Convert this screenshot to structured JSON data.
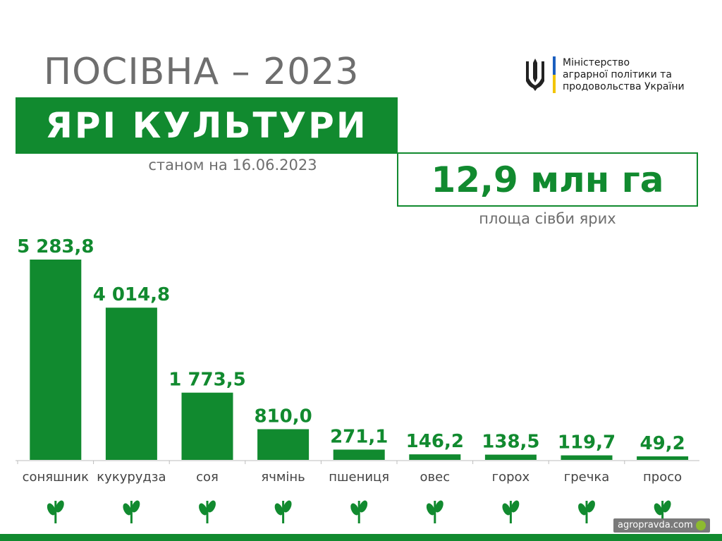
{
  "header": {
    "title": "ПОСІВНА – 2023",
    "banner": "ЯРІ КУЛЬТУРИ",
    "as_of": "станом на 16.06.2023"
  },
  "ministry": {
    "lines": [
      "Міністерство",
      "аграрної політики та",
      "продовольства України"
    ]
  },
  "total": {
    "value": "12,9 млн га",
    "caption": "площа сівби ярих"
  },
  "chart_data": {
    "type": "bar",
    "categories": [
      "соняшник",
      "кукурудза",
      "соя",
      "ячмінь",
      "пшениця",
      "овес",
      "горох",
      "гречка",
      "просо"
    ],
    "values": [
      5283.8,
      4014.8,
      1773.5,
      810.0,
      271.1,
      146.2,
      138.5,
      119.7,
      49.2
    ],
    "value_labels": [
      "5 283,8",
      "4 014,8",
      "1 773,5",
      "810,0",
      "271,1",
      "146,2",
      "138,5",
      "119,7",
      "49,2"
    ],
    "icons": [
      "sunflower-icon",
      "corn-icon",
      "soy-icon",
      "barley-icon",
      "wheat-icon",
      "oats-icon",
      "pea-icon",
      "buckwheat-icon",
      "millet-icon"
    ],
    "title": "",
    "xlabel": "",
    "ylabel": "",
    "ylim": [
      0,
      5283.8
    ],
    "grid": false,
    "legend": "none",
    "bar_color": "#118a2f"
  },
  "watermark": "agropravda.com",
  "colors": {
    "accent": "#118a2f",
    "muted": "#6e6e6e"
  }
}
